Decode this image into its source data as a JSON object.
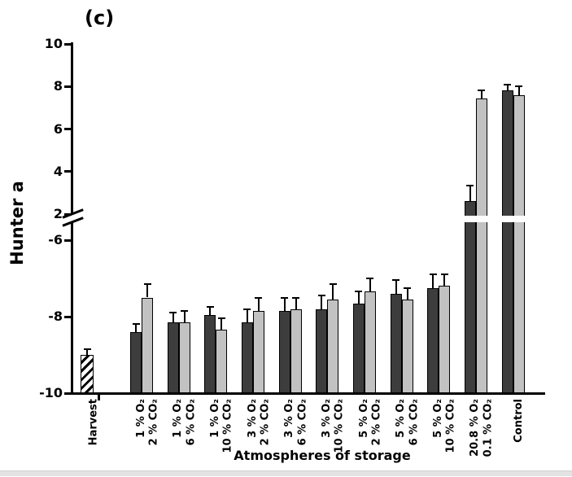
{
  "chart_data": {
    "type": "bar",
    "title": "(c)",
    "xlabel": "Atmospheres of storage",
    "ylabel": "Hunter a",
    "ylim": [
      -10,
      10
    ],
    "grid": false,
    "legend": "none",
    "y_axis_break": {
      "lower_segment_max": -6,
      "upper_segment_min": 2
    },
    "y_ticks": [
      10,
      8,
      6,
      4,
      2,
      -6,
      -8,
      -10
    ],
    "y_tick_labels": [
      "10",
      "8",
      "6",
      "4",
      "2",
      "-6",
      "-8",
      "-10"
    ],
    "harvest": {
      "label": "Harvest",
      "value": -9.0,
      "error": 0.15,
      "fill": "black-white-diagonal-hatch"
    },
    "groups": [
      {
        "label_line1": "1 % O₂",
        "label_line2": "2 % CO₂",
        "dark": {
          "value": -8.4,
          "error": 0.2
        },
        "light": {
          "value": -7.5,
          "error": 0.35
        }
      },
      {
        "label_line1": "1 % O₂",
        "label_line2": "6 % CO₂",
        "dark": {
          "value": -8.15,
          "error": 0.25
        },
        "light": {
          "value": -8.15,
          "error": 0.3
        }
      },
      {
        "label_line1": "1 % O₂",
        "label_line2": "10 % CO₂",
        "dark": {
          "value": -7.95,
          "error": 0.2
        },
        "light": {
          "value": -8.35,
          "error": 0.3
        }
      },
      {
        "label_line1": "3 % O₂",
        "label_line2": "2 % CO₂",
        "dark": {
          "value": -8.15,
          "error": 0.35
        },
        "light": {
          "value": -7.85,
          "error": 0.35
        }
      },
      {
        "label_line1": "3 % O₂",
        "label_line2": "6 % CO₂",
        "dark": {
          "value": -7.85,
          "error": 0.35
        },
        "light": {
          "value": -7.8,
          "error": 0.3
        }
      },
      {
        "label_line1": "3 % O₂",
        "label_line2": "10 % CO₂",
        "dark": {
          "value": -7.8,
          "error": 0.35
        },
        "light": {
          "value": -7.55,
          "error": 0.4
        }
      },
      {
        "label_line1": "5 % O₂",
        "label_line2": "2 % CO₂",
        "dark": {
          "value": -7.65,
          "error": 0.3
        },
        "light": {
          "value": -7.35,
          "error": 0.35
        }
      },
      {
        "label_line1": "5 % O₂",
        "label_line2": "6 % CO₂",
        "dark": {
          "value": -7.4,
          "error": 0.35
        },
        "light": {
          "value": -7.55,
          "error": 0.3
        }
      },
      {
        "label_line1": "5 % O₂",
        "label_line2": "10 % CO₂",
        "dark": {
          "value": -7.25,
          "error": 0.35
        },
        "light": {
          "value": -7.2,
          "error": 0.3
        }
      },
      {
        "label_line1": "20.8 % O₂",
        "label_line2": "0.1 % CO₂",
        "dark": {
          "value": 2.6,
          "error": 0.75
        },
        "light": {
          "value": 7.45,
          "error": 0.35
        }
      },
      {
        "label_line1": "Control",
        "label_line2": "",
        "dark": {
          "value": 7.8,
          "error": 0.3
        },
        "light": {
          "value": 7.6,
          "error": 0.4
        }
      }
    ],
    "colors": {
      "dark_bar": "#3d3d3d",
      "light_bar": "#c2c2c2",
      "axis": "#000000",
      "background": "#ffffff"
    }
  }
}
